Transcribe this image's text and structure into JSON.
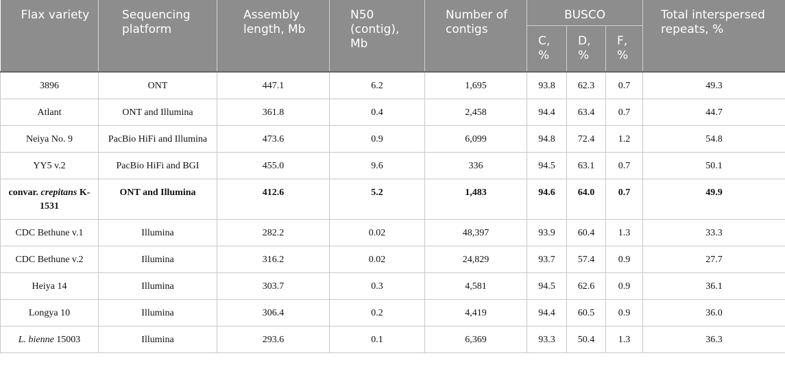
{
  "table": {
    "header": [
      "Flax variety",
      "Sequencing platform",
      "Assembly length, Mb",
      "N50 (contig), Mb",
      "Number of contigs",
      "BUSCO",
      "Total interspersed repeats, %"
    ],
    "subheader": [
      "C, %",
      "D, %",
      "F, %"
    ],
    "rows": [
      [
        [
          "3896"
        ],
        "ONT",
        "447.1",
        "6.2",
        "1,695",
        "93.8",
        "62.3",
        "0.7",
        "49.3"
      ],
      [
        [
          "Atlant"
        ],
        "ONT and Illumina",
        "361.8",
        "0.4",
        "2,458",
        "94.4",
        "63.4",
        "0.7",
        "44.7"
      ],
      [
        [
          "Neiya No. 9"
        ],
        "PacBio HiFi and Illumina",
        "473.6",
        "0.9",
        "6,099",
        "94.8",
        "72.4",
        "1.2",
        "54.8"
      ],
      [
        [
          "YY5 v.2"
        ],
        "PacBio HiFi and BGI",
        "455.0",
        "9.6",
        "336",
        "94.5",
        "63.1",
        "0.7",
        "50.1"
      ],
      [
        [
          "convar.",
          "crepitans",
          "K-1531"
        ],
        "ONT and Illumina",
        "412.6",
        "5.2",
        "1,483",
        "94.6",
        "64.0",
        "0.7",
        "49.9"
      ],
      [
        [
          "CDC Bethune v.1"
        ],
        "Illumina",
        "282.2",
        "0.02",
        "48,397",
        "93.9",
        "60.4",
        "1.3",
        "33.3"
      ],
      [
        [
          "CDC Bethune v.2"
        ],
        "Illumina",
        "316.2",
        "0.02",
        "24,829",
        "93.7",
        "57.4",
        "0.9",
        "27.7"
      ],
      [
        [
          "Heiya 14"
        ],
        "Illumina",
        "303.7",
        "0.3",
        "4,581",
        "94.5",
        "62.6",
        "0.9",
        "36.1"
      ],
      [
        [
          "Longya 10"
        ],
        "Illumina",
        "306.4",
        "0.2",
        "4,419",
        "94.4",
        "60.5",
        "0.9",
        "36.0"
      ],
      [
        [
          "L. bienne",
          "15003"
        ],
        "Illumina",
        "293.6",
        "0.1",
        "6,369",
        "93.3",
        "50.4",
        "1.3",
        "36.3"
      ]
    ]
  }
}
